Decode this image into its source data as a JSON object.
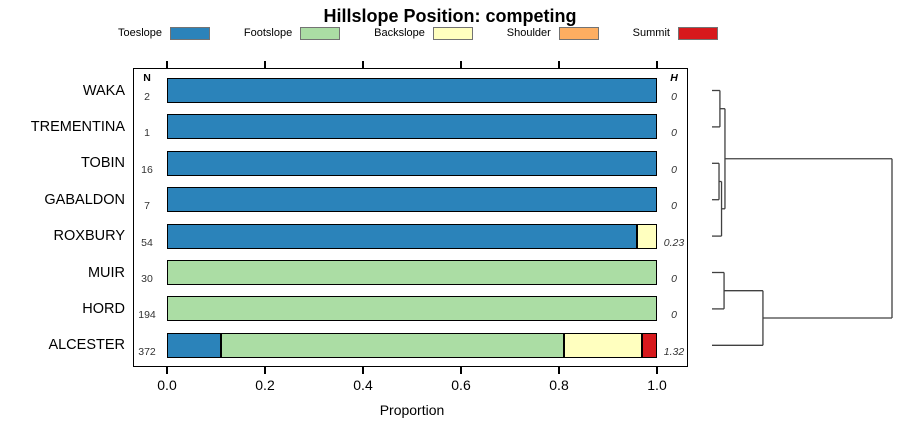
{
  "title": "Hillslope Position: competing",
  "legend": {
    "items": [
      {
        "label": "Toeslope",
        "color": "#2B83BA"
      },
      {
        "label": "Footslope",
        "color": "#ABDDA4"
      },
      {
        "label": "Backslope",
        "color": "#FFFFBF"
      },
      {
        "label": "Shoulder",
        "color": "#FDAE61"
      },
      {
        "label": "Summit",
        "color": "#D7191C"
      }
    ]
  },
  "columns": {
    "n_header": "N",
    "h_header": "H"
  },
  "chart_data": {
    "type": "bar",
    "orientation": "horizontal-stacked",
    "title": "Hillslope Position: competing",
    "categories": [
      "WAKA",
      "TREMENTINA",
      "TOBIN",
      "GABALDON",
      "ROXBURY",
      "MUIR",
      "HORD",
      "ALCESTER"
    ],
    "n_values": [
      2,
      1,
      16,
      7,
      54,
      30,
      194,
      372
    ],
    "h_values": [
      "0",
      "0",
      "0",
      "0",
      "0.23",
      "0",
      "0",
      "1.32"
    ],
    "series": [
      {
        "name": "Toeslope",
        "color": "#2B83BA",
        "values": [
          1,
          1,
          1,
          1,
          0.96,
          0,
          0,
          0.11
        ]
      },
      {
        "name": "Footslope",
        "color": "#ABDDA4",
        "values": [
          0,
          0,
          0,
          0,
          0,
          1,
          1,
          0.7
        ]
      },
      {
        "name": "Backslope",
        "color": "#FFFFBF",
        "values": [
          0,
          0,
          0,
          0,
          0.04,
          0,
          0,
          0.16
        ]
      },
      {
        "name": "Shoulder",
        "color": "#FDAE61",
        "values": [
          0,
          0,
          0,
          0,
          0,
          0,
          0,
          0
        ]
      },
      {
        "name": "Summit",
        "color": "#D7191C",
        "values": [
          0,
          0,
          0,
          0,
          0,
          0,
          0,
          0.03
        ]
      }
    ],
    "xlabel": "Proportion",
    "xlim": [
      0,
      1
    ],
    "x_ticks": [
      "0.0",
      "0.2",
      "0.4",
      "0.6",
      "0.8",
      "1.0"
    ],
    "legend_position": "top",
    "grid": false
  },
  "dendrogram": {
    "leaf_order": [
      "WAKA",
      "TREMENTINA",
      "TOBIN",
      "GABALDON",
      "ROXBURY",
      "MUIR",
      "HORD",
      "ALCESTER"
    ],
    "merges": [
      {
        "id": "M1",
        "a": "WAKA",
        "b": "TREMENTINA",
        "height": 0.044
      },
      {
        "id": "M2",
        "a": "TOBIN",
        "b": "GABALDON",
        "height": 0.039
      },
      {
        "id": "M3",
        "a": "M2",
        "b": "ROXBURY",
        "height": 0.053
      },
      {
        "id": "M4",
        "a": "M1",
        "b": "M3",
        "height": 0.072
      },
      {
        "id": "M5",
        "a": "MUIR",
        "b": "HORD",
        "height": 0.067
      },
      {
        "id": "M6",
        "a": "M5",
        "b": "ALCESTER",
        "height": 0.283
      },
      {
        "id": "M7",
        "a": "M4",
        "b": "M6",
        "height": 1.0
      }
    ]
  }
}
